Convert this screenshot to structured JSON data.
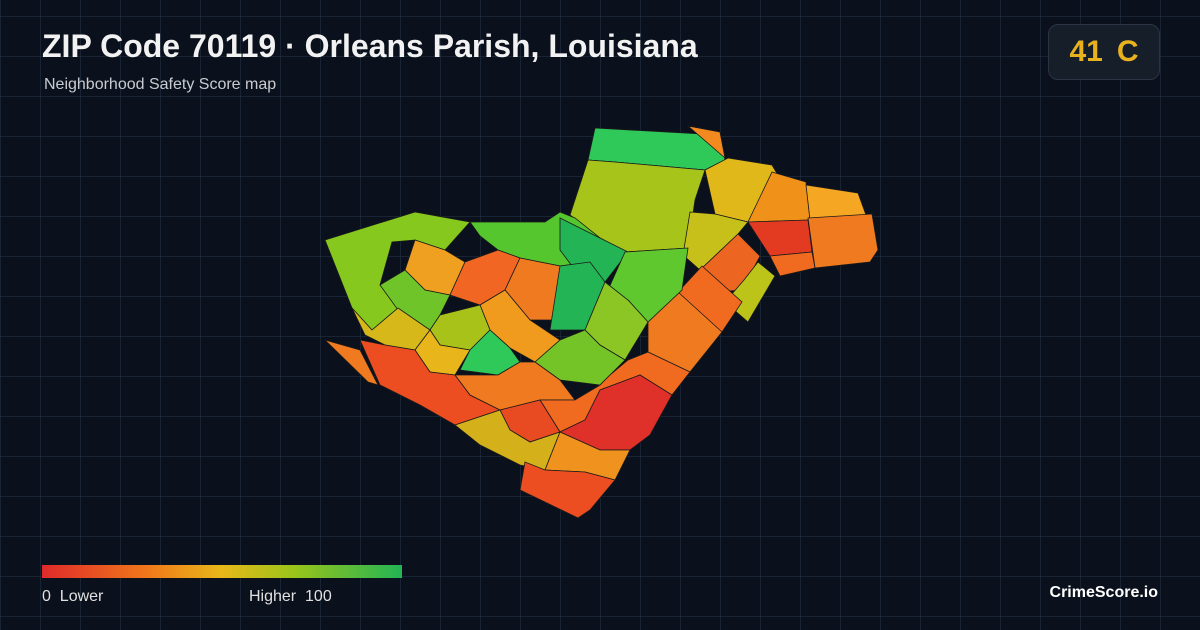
{
  "header": {
    "title": "ZIP Code 70119 · Orleans Parish, Louisiana",
    "subtitle": "Neighborhood Safety Score map"
  },
  "score": {
    "value": 41,
    "grade": "C"
  },
  "legend": {
    "min": 0,
    "min_label": "Lower",
    "max_label": "Higher",
    "max": 100
  },
  "brand": "CrimeScore.io"
}
